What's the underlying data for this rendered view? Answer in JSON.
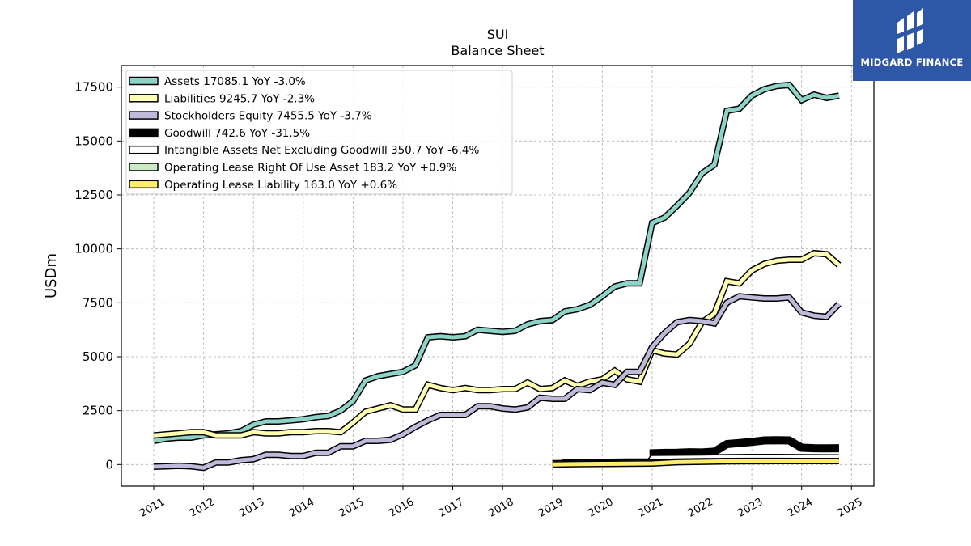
{
  "logo": {
    "text": "MIDGARD FINANCE",
    "bg": "#2f57a8"
  },
  "chart_data": {
    "type": "line",
    "title": "SUI",
    "subtitle": "Balance  Sheet",
    "ylabel": "USDm",
    "xlabel": "",
    "xlim": [
      2010.35,
      2025.45
    ],
    "ylim": [
      -1000,
      18500
    ],
    "yticks": [
      0,
      2500,
      5000,
      7500,
      10000,
      12500,
      15000,
      17500
    ],
    "xticks": [
      2011,
      2012,
      2013,
      2014,
      2015,
      2016,
      2017,
      2018,
      2019,
      2020,
      2021,
      2022,
      2023,
      2024,
      2025
    ],
    "grid": true,
    "legend_position": "upper-left",
    "series": [
      {
        "name": "Assets",
        "legend": "Assets  17085.1 YoY -3.0%",
        "color": "#8dd3c7",
        "width": 5,
        "x": [
          2011.0,
          2011.25,
          2011.5,
          2011.75,
          2012.0,
          2012.25,
          2012.5,
          2012.75,
          2013.0,
          2013.25,
          2013.5,
          2013.75,
          2014.0,
          2014.25,
          2014.5,
          2014.75,
          2015.0,
          2015.25,
          2015.5,
          2015.75,
          2016.0,
          2016.25,
          2016.5,
          2016.75,
          2017.0,
          2017.25,
          2017.5,
          2017.75,
          2018.0,
          2018.25,
          2018.5,
          2018.75,
          2019.0,
          2019.25,
          2019.5,
          2019.75,
          2020.0,
          2020.25,
          2020.5,
          2020.75,
          2021.0,
          2021.25,
          2021.5,
          2021.75,
          2022.0,
          2022.25,
          2022.5,
          2022.75,
          2023.0,
          2023.25,
          2023.5,
          2023.75,
          2024.0,
          2024.25,
          2024.5,
          2024.75
        ],
        "y": [
          1100,
          1200,
          1250,
          1250,
          1350,
          1400,
          1450,
          1550,
          1850,
          2000,
          2000,
          2050,
          2100,
          2200,
          2250,
          2500,
          2950,
          3900,
          4100,
          4200,
          4300,
          4600,
          5900,
          5950,
          5900,
          5950,
          6250,
          6200,
          6150,
          6200,
          6500,
          6650,
          6700,
          7100,
          7200,
          7400,
          7800,
          8250,
          8400,
          8400,
          11200,
          11450,
          12000,
          12600,
          13500,
          13900,
          16400,
          16500,
          17100,
          17400,
          17550,
          17600,
          16900,
          17150,
          17000,
          17100
        ]
      },
      {
        "name": "Liabilities",
        "legend": "Liabilities  9245.7 YoY -2.3%",
        "color": "#ffffb3",
        "width": 5,
        "x": [
          2011.0,
          2011.25,
          2011.5,
          2011.75,
          2012.0,
          2012.25,
          2012.5,
          2012.75,
          2013.0,
          2013.25,
          2013.5,
          2013.75,
          2014.0,
          2014.25,
          2014.5,
          2014.75,
          2015.0,
          2015.25,
          2015.5,
          2015.75,
          2016.0,
          2016.25,
          2016.5,
          2016.75,
          2017.0,
          2017.25,
          2017.5,
          2017.75,
          2018.0,
          2018.25,
          2018.5,
          2018.75,
          2019.0,
          2019.25,
          2019.5,
          2019.75,
          2020.0,
          2020.25,
          2020.5,
          2020.75,
          2021.0,
          2021.25,
          2021.5,
          2021.75,
          2022.0,
          2022.25,
          2022.5,
          2022.75,
          2023.0,
          2023.25,
          2023.5,
          2023.75,
          2024.0,
          2024.25,
          2024.5,
          2024.75
        ],
        "y": [
          1350,
          1400,
          1450,
          1500,
          1500,
          1350,
          1350,
          1350,
          1500,
          1450,
          1450,
          1500,
          1500,
          1550,
          1550,
          1500,
          1950,
          2450,
          2600,
          2750,
          2550,
          2550,
          3700,
          3550,
          3450,
          3550,
          3450,
          3450,
          3500,
          3500,
          3800,
          3500,
          3550,
          3900,
          3650,
          3850,
          3950,
          4350,
          3950,
          3850,
          5300,
          5150,
          5100,
          5600,
          6600,
          7000,
          8500,
          8400,
          9000,
          9300,
          9450,
          9500,
          9500,
          9800,
          9750,
          9250
        ]
      },
      {
        "name": "Stockholders Equity",
        "legend": "Stockholders Equity  7455.5 YoY -3.7%",
        "color": "#bebada",
        "width": 5,
        "x": [
          2011.0,
          2011.25,
          2011.5,
          2011.75,
          2012.0,
          2012.25,
          2012.5,
          2012.75,
          2013.0,
          2013.25,
          2013.5,
          2013.75,
          2014.0,
          2014.25,
          2014.5,
          2014.75,
          2015.0,
          2015.25,
          2015.5,
          2015.75,
          2016.0,
          2016.25,
          2016.5,
          2016.75,
          2017.0,
          2017.25,
          2017.5,
          2017.75,
          2018.0,
          2018.25,
          2018.5,
          2018.75,
          2019.0,
          2019.25,
          2019.5,
          2019.75,
          2020.0,
          2020.25,
          2020.5,
          2020.75,
          2021.0,
          2021.25,
          2021.5,
          2021.75,
          2022.0,
          2022.25,
          2022.5,
          2022.75,
          2023.0,
          2023.25,
          2023.5,
          2023.75,
          2024.0,
          2024.25,
          2024.5,
          2024.75
        ],
        "y": [
          -100,
          -80,
          -60,
          -80,
          -150,
          100,
          100,
          200,
          250,
          450,
          450,
          400,
          400,
          550,
          550,
          850,
          850,
          1100,
          1100,
          1150,
          1400,
          1750,
          2050,
          2300,
          2300,
          2300,
          2700,
          2700,
          2600,
          2550,
          2650,
          3100,
          3050,
          3050,
          3500,
          3450,
          3800,
          3700,
          4300,
          4300,
          5450,
          6100,
          6600,
          6700,
          6650,
          6550,
          7500,
          7800,
          7750,
          7700,
          7700,
          7750,
          7050,
          6900,
          6850,
          7450
        ]
      },
      {
        "name": "Goodwill",
        "legend": "Goodwill  742.6 YoY -31.5%",
        "color": "#000000",
        "width": 7,
        "x": [
          2020.95,
          2021.25,
          2021.5,
          2021.75,
          2022.0,
          2022.25,
          2022.5,
          2022.75,
          2023.0,
          2023.25,
          2023.5,
          2023.75,
          2024.0,
          2024.25,
          2024.5,
          2024.75
        ],
        "y": [
          520,
          540,
          550,
          570,
          560,
          600,
          950,
          1000,
          1050,
          1120,
          1130,
          1120,
          780,
          760,
          750,
          760
        ]
      },
      {
        "name": "Intangible Assets Net Excluding Goodwill",
        "legend": "Intangible Assets Net Excluding Goodwill  350.7 YoY -6.4%",
        "color": "#ffffff",
        "width": 4,
        "x": [
          2019.2,
          2019.5,
          2020.0,
          2020.5,
          2020.95,
          2021.0,
          2021.5,
          2022.0,
          2022.5,
          2023.0,
          2023.5,
          2024.0,
          2024.75
        ],
        "y": [
          110,
          120,
          140,
          150,
          160,
          320,
          330,
          340,
          360,
          370,
          370,
          360,
          350
        ]
      },
      {
        "name": "Operating Lease Right Of Use Asset",
        "legend": "Operating Lease Right Of Use Asset  183.2 YoY +0.9%",
        "color": "#ccebc5",
        "width": 4,
        "x": [
          2019.0,
          2019.5,
          2020.0,
          2020.5,
          2021.0,
          2021.5,
          2022.0,
          2022.5,
          2023.0,
          2023.5,
          2024.0,
          2024.75
        ],
        "y": [
          80,
          90,
          100,
          110,
          120,
          150,
          170,
          180,
          185,
          185,
          183,
          183
        ]
      },
      {
        "name": "Operating Lease Liability",
        "legend": "Operating Lease Liability  163.0 YoY +0.6%",
        "color": "#ffed6f",
        "width": 5,
        "x": [
          2019.0,
          2019.5,
          2020.0,
          2020.5,
          2021.0,
          2021.5,
          2022.0,
          2022.5,
          2023.0,
          2023.5,
          2024.0,
          2024.75
        ],
        "y": [
          0,
          20,
          30,
          40,
          50,
          110,
          130,
          150,
          160,
          162,
          163,
          163
        ]
      }
    ]
  }
}
